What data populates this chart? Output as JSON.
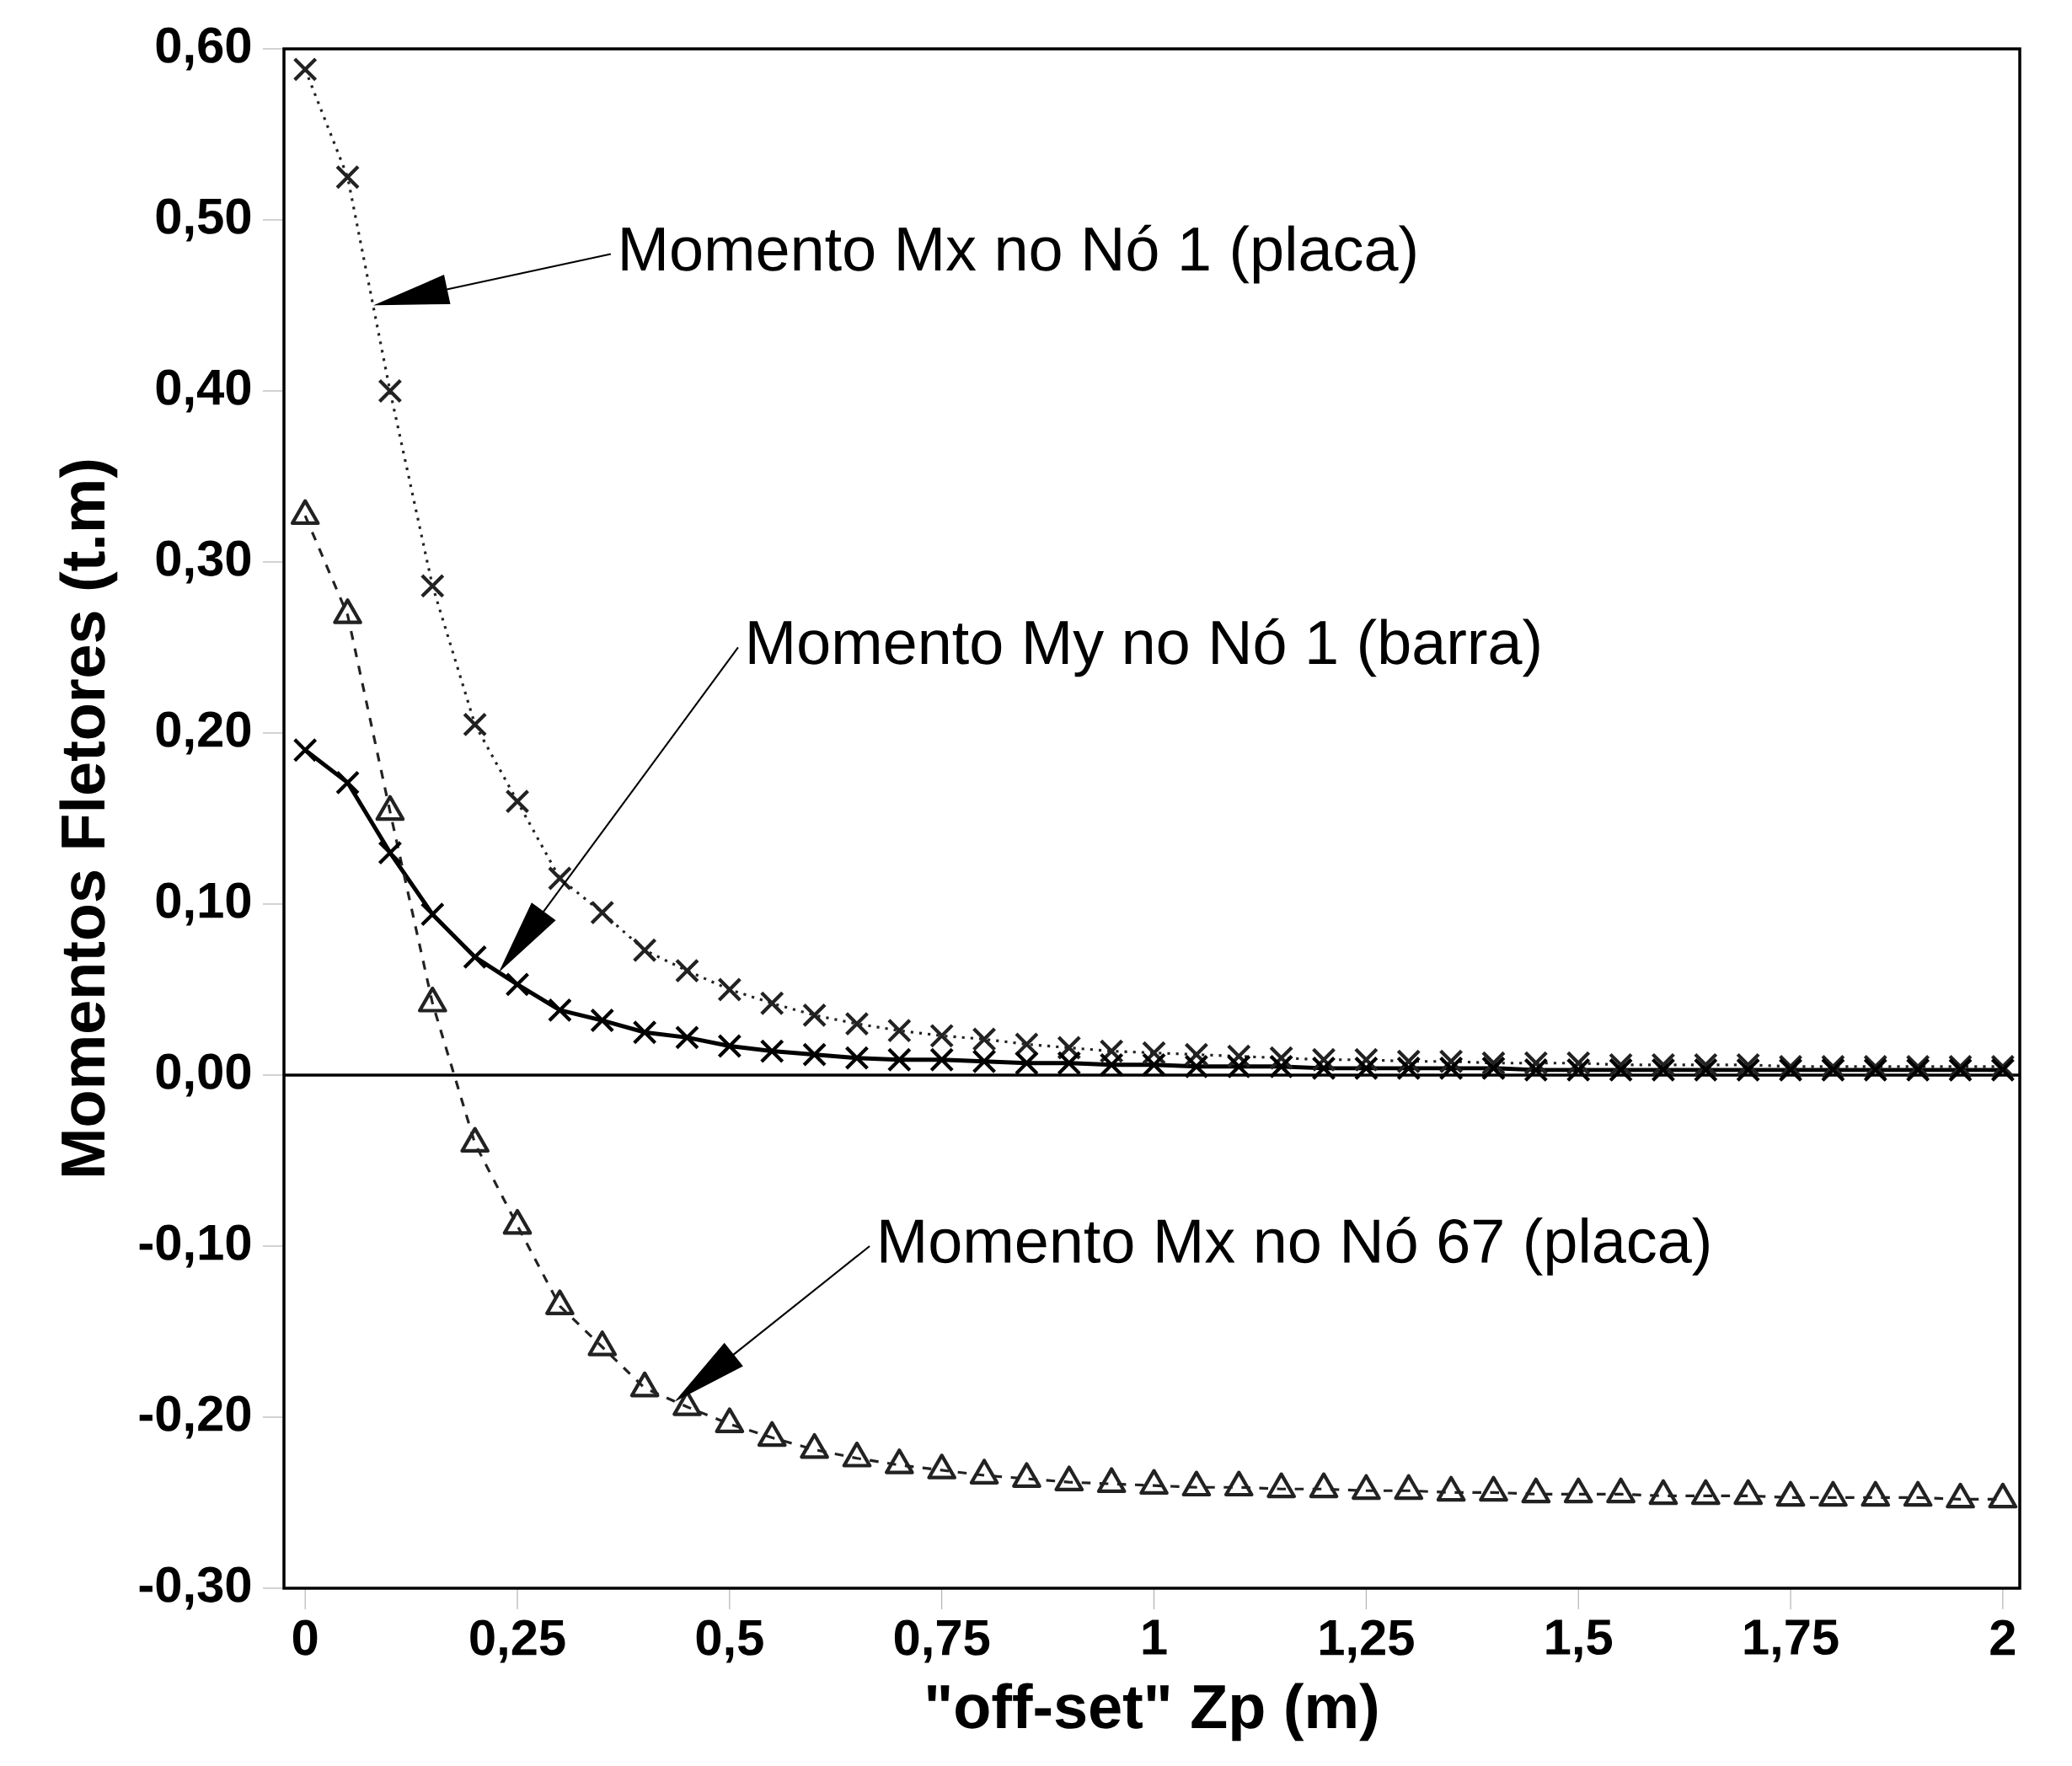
{
  "chart_data": {
    "type": "line",
    "xlabel": "\"off-set\" Zp (m)",
    "ylabel": "Momentos Fletores (t.m)",
    "x": [
      0,
      0.05,
      0.1,
      0.15,
      0.2,
      0.25,
      0.3,
      0.35,
      0.4,
      0.45,
      0.5,
      0.55,
      0.6,
      0.65,
      0.7,
      0.75,
      0.8,
      0.85,
      0.9,
      0.95,
      1.0,
      1.05,
      1.1,
      1.15,
      1.2,
      1.25,
      1.3,
      1.35,
      1.4,
      1.45,
      1.5,
      1.55,
      1.6,
      1.65,
      1.7,
      1.75,
      1.8,
      1.85,
      1.9,
      1.95,
      2.0
    ],
    "series": [
      {
        "color": "#222222",
        "marker": "cross",
        "line_style": "dotted",
        "values": [
          0.588,
          0.525,
          0.4,
          0.286,
          0.205,
          0.16,
          0.115,
          0.095,
          0.073,
          0.061,
          0.05,
          0.042,
          0.035,
          0.03,
          0.026,
          0.023,
          0.021,
          0.018,
          0.016,
          0.014,
          0.013,
          0.012,
          0.011,
          0.01,
          0.009,
          0.009,
          0.008,
          0.008,
          0.007,
          0.007,
          0.007,
          0.006,
          0.006,
          0.006,
          0.006,
          0.005,
          0.005,
          0.005,
          0.005,
          0.005,
          0.005
        ]
      },
      {
        "color": "#000000",
        "marker": "cross",
        "line_style": "solid",
        "values": [
          0.19,
          0.171,
          0.13,
          0.094,
          0.069,
          0.053,
          0.038,
          0.032,
          0.025,
          0.022,
          0.017,
          0.014,
          0.012,
          0.01,
          0.009,
          0.009,
          0.008,
          0.007,
          0.007,
          0.006,
          0.006,
          0.005,
          0.005,
          0.005,
          0.004,
          0.004,
          0.004,
          0.004,
          0.004,
          0.003,
          0.003,
          0.003,
          0.003,
          0.003,
          0.003,
          0.003,
          0.003,
          0.003,
          0.003,
          0.003,
          0.003
        ]
      },
      {
        "color": "#222222",
        "marker": "triangle",
        "line_style": "dashed",
        "values": [
          0.327,
          0.269,
          0.154,
          0.042,
          -0.04,
          -0.088,
          -0.135,
          -0.159,
          -0.183,
          -0.194,
          -0.204,
          -0.212,
          -0.219,
          -0.224,
          -0.228,
          -0.231,
          -0.234,
          -0.236,
          -0.238,
          -0.239,
          -0.24,
          -0.241,
          -0.241,
          -0.242,
          -0.242,
          -0.243,
          -0.243,
          -0.244,
          -0.244,
          -0.245,
          -0.245,
          -0.245,
          -0.246,
          -0.246,
          -0.246,
          -0.247,
          -0.247,
          -0.247,
          -0.247,
          -0.248,
          -0.248
        ]
      }
    ],
    "xlim": [
      -0.025,
      2.02
    ],
    "ylim": [
      -0.3,
      0.6
    ],
    "xticks": [
      0,
      {
        "value": 0.25,
        "label": "0,25"
      },
      {
        "value": 0.5,
        "label": "0,5"
      },
      {
        "value": 0.75,
        "label": "0,75"
      },
      1,
      {
        "value": 1.25,
        "label": "1,25"
      },
      {
        "value": 1.5,
        "label": "1,5"
      },
      {
        "value": 1.75,
        "label": "1,75"
      },
      2
    ],
    "yticks": [
      {
        "value": -0.3,
        "label": "-0,30"
      },
      {
        "value": -0.2,
        "label": "-0,20"
      },
      {
        "value": -0.1,
        "label": "-0,10"
      },
      {
        "value": 0,
        "label": "0,00"
      },
      {
        "value": 0.1,
        "label": "0,10"
      },
      {
        "value": 0.2,
        "label": "0,20"
      },
      {
        "value": 0.3,
        "label": "0,30"
      },
      {
        "value": 0.4,
        "label": "0,40"
      },
      {
        "value": 0.5,
        "label": "0,50"
      },
      {
        "value": 0.6,
        "label": "0,60"
      }
    ],
    "ref_lines": [
      {
        "axis": "y",
        "value": 0,
        "color": "#000000",
        "line_style": "solid"
      }
    ],
    "annotations": [
      "Momento Mx no Nó 1 (placa)",
      "Momento My no Nó 1 (barra)",
      "Momento Mx no Nó 67 (placa)"
    ]
  }
}
